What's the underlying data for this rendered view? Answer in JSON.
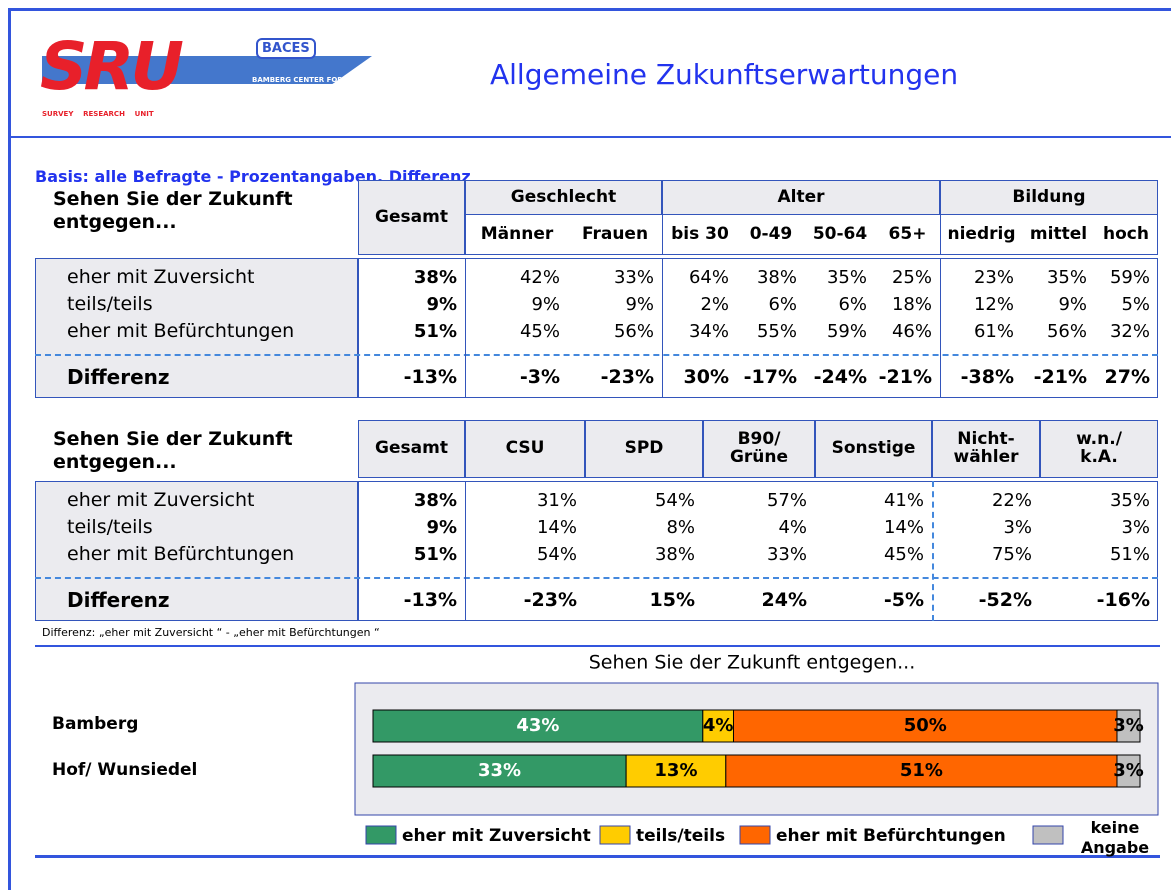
{
  "header": {
    "title": "Allgemeine Zukunftserwartungen",
    "logo": {
      "main": "SRU",
      "badge": "BACES",
      "center": "BAMBERG CENTER FOR EUROPEAN STUDIES",
      "unit": "SURVEY    RESEARCH    UNIT"
    },
    "basis": "Basis: alle Befragte - Prozentangaben, Differenz"
  },
  "table1": {
    "question": "Sehen Sie der Zukunft entgegen...",
    "total_header": "Gesamt",
    "groups": [
      {
        "label": "Geschlecht",
        "columns": [
          "Männer",
          "Frauen"
        ]
      },
      {
        "label": "Alter",
        "columns": [
          "bis 30",
          "0-49",
          "50-64",
          "65+"
        ]
      },
      {
        "label": "Bildung",
        "columns": [
          "niedrig",
          "mittel",
          "hoch"
        ]
      }
    ],
    "rows": [
      {
        "label": "eher mit Zuversicht",
        "values": [
          "38%",
          "42%",
          "33%",
          "64%",
          "38%",
          "35%",
          "25%",
          "23%",
          "35%",
          "59%"
        ]
      },
      {
        "label": "teils/teils",
        "values": [
          "9%",
          "9%",
          "9%",
          "2%",
          "6%",
          "6%",
          "18%",
          "12%",
          "9%",
          "5%"
        ]
      },
      {
        "label": "eher mit Befürchtungen",
        "values": [
          "51%",
          "45%",
          "56%",
          "34%",
          "55%",
          "59%",
          "46%",
          "61%",
          "56%",
          "32%"
        ]
      }
    ],
    "difference": {
      "label": "Differenz",
      "values": [
        "-13%",
        "-3%",
        "-23%",
        "30%",
        "-17%",
        "-24%",
        "-21%",
        "-38%",
        "-21%",
        "27%"
      ]
    }
  },
  "table2": {
    "question": "Sehen Sie der Zukunft entgegen...",
    "columns": [
      "Gesamt",
      "CSU",
      "SPD",
      "B90/\nGrüne",
      "Sonstige",
      "Nicht-\nwähler",
      "w.n./\nk.A."
    ],
    "rows": [
      {
        "label": "eher mit Zuversicht",
        "values": [
          "38%",
          "31%",
          "54%",
          "57%",
          "41%",
          "22%",
          "35%"
        ]
      },
      {
        "label": "teils/teils",
        "values": [
          "9%",
          "14%",
          "8%",
          "4%",
          "14%",
          "3%",
          "3%"
        ]
      },
      {
        "label": "eher mit Befürchtungen",
        "values": [
          "51%",
          "54%",
          "38%",
          "33%",
          "45%",
          "75%",
          "51%"
        ]
      }
    ],
    "difference": {
      "label": "Differenz",
      "values": [
        "-13%",
        "-23%",
        "15%",
        "24%",
        "-5%",
        "-52%",
        "-16%"
      ]
    }
  },
  "footnote": "Differenz: „eher mit Zuversicht “ - „eher mit Befürchtungen “",
  "chart_data": {
    "type": "stacked-bar-horizontal",
    "title": "Sehen Sie der Zukunft entgegen...",
    "categories": [
      "Bamberg",
      "Hof/ Wunsiedel"
    ],
    "xlim": [
      0,
      100
    ],
    "series": [
      {
        "name": "eher mit Zuversicht",
        "color": "#339966",
        "values": [
          43,
          33
        ],
        "value_labels": [
          "43%",
          "33%"
        ]
      },
      {
        "name": "teils/teils",
        "color": "#ffcc00",
        "values": [
          4,
          13
        ],
        "value_labels": [
          "4%",
          "13%"
        ]
      },
      {
        "name": "eher mit Befürchtungen",
        "color": "#ff6600",
        "values": [
          50,
          51
        ],
        "value_labels": [
          "50%",
          "51%"
        ]
      },
      {
        "name": "keine Angabe",
        "color": "#c0c0c0",
        "values": [
          3,
          3
        ],
        "value_labels": [
          "3%",
          "3%"
        ]
      }
    ]
  }
}
